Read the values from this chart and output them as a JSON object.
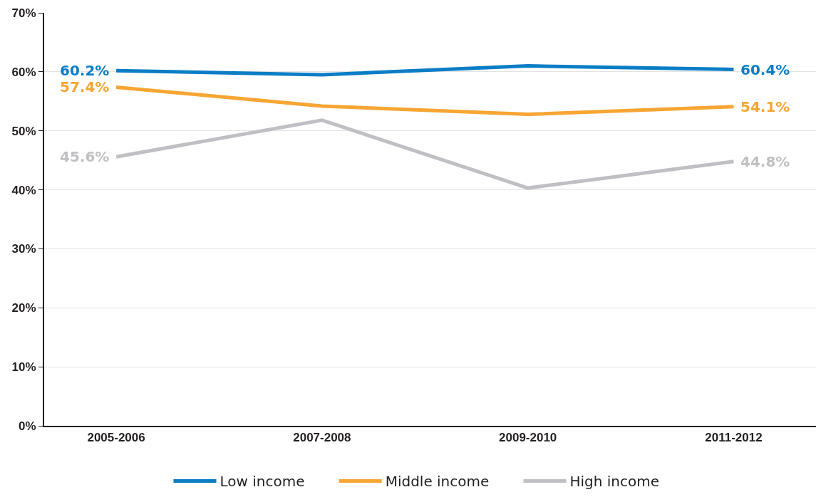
{
  "chart_data": {
    "type": "line",
    "categories": [
      "2005-2006",
      "2007-2008",
      "2009-2010",
      "2011-2012"
    ],
    "series": [
      {
        "name": "Low income",
        "color": "#0a7dc5",
        "values": [
          60.2,
          59.5,
          61.0,
          60.4
        ],
        "value_labels": [
          "60.2%",
          null,
          null,
          "60.4%"
        ]
      },
      {
        "name": "Middle income",
        "color": "#f7a533",
        "values": [
          57.4,
          54.2,
          52.8,
          54.1
        ],
        "value_labels": [
          "57.4%",
          null,
          null,
          "54.1%"
        ]
      },
      {
        "name": "High income",
        "color": "#c0bfc3",
        "values": [
          45.6,
          51.8,
          40.3,
          44.8
        ],
        "value_labels": [
          "45.6%",
          null,
          null,
          "44.8%"
        ]
      }
    ],
    "ylim": [
      0,
      70
    ],
    "yticks": [
      {
        "value": 0,
        "label": "0%"
      },
      {
        "value": 10,
        "label": "10%"
      },
      {
        "value": 20,
        "label": "20%"
      },
      {
        "value": 30,
        "label": "30%"
      },
      {
        "value": 40,
        "label": "40%"
      },
      {
        "value": 50,
        "label": "50%"
      },
      {
        "value": 60,
        "label": "60%"
      },
      {
        "value": 70,
        "label": "70%"
      }
    ],
    "grid": "y",
    "legend": "bottom",
    "marker": "none",
    "line_style": "solid"
  }
}
